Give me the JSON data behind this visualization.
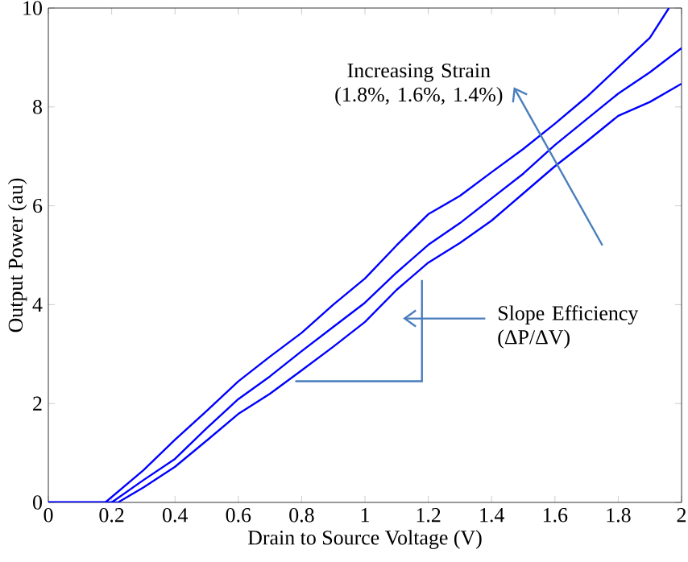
{
  "chart_data": {
    "type": "line",
    "xlabel": "Drain to Source Voltage (V)",
    "ylabel": "Output Power (au)",
    "xlim": [
      0,
      2
    ],
    "ylim": [
      0,
      10
    ],
    "xticks": [
      0,
      0.2,
      0.4,
      0.6,
      0.8,
      1,
      1.2,
      1.4,
      1.6,
      1.8,
      2
    ],
    "yticks": [
      0,
      2,
      4,
      6,
      8,
      10
    ],
    "grid": false,
    "marker": "none",
    "line_style": "solid",
    "series": [
      {
        "color": "#0000ff",
        "x": [
          0,
          0.18,
          0.3,
          0.4,
          0.5,
          0.6,
          0.7,
          0.8,
          0.9,
          1.0,
          1.1,
          1.2,
          1.3,
          1.4,
          1.5,
          1.6,
          1.7,
          1.8,
          1.9,
          1.96
        ],
        "values": [
          0,
          0,
          0.65,
          1.27,
          1.85,
          2.45,
          2.95,
          3.43,
          4.0,
          4.53,
          5.2,
          5.83,
          6.2,
          6.68,
          7.15,
          7.66,
          8.2,
          8.8,
          9.4,
          10
        ]
      },
      {
        "color": "#0000ff",
        "x": [
          0,
          0.2,
          0.3,
          0.4,
          0.5,
          0.6,
          0.7,
          0.8,
          0.9,
          1.0,
          1.1,
          1.2,
          1.3,
          1.4,
          1.5,
          1.6,
          1.7,
          1.8,
          1.9,
          2.0
        ],
        "values": [
          0,
          0,
          0.45,
          0.88,
          1.5,
          2.09,
          2.55,
          3.06,
          3.55,
          4.04,
          4.65,
          5.21,
          5.65,
          6.15,
          6.65,
          7.23,
          7.75,
          8.27,
          8.7,
          9.19
        ]
      },
      {
        "color": "#0000ff",
        "x": [
          0,
          0.22,
          0.3,
          0.4,
          0.5,
          0.6,
          0.7,
          0.8,
          0.9,
          1.0,
          1.1,
          1.2,
          1.3,
          1.4,
          1.5,
          1.6,
          1.7,
          1.8,
          1.9,
          2.0
        ],
        "values": [
          0,
          0,
          0.3,
          0.72,
          1.25,
          1.79,
          2.2,
          2.67,
          3.15,
          3.65,
          4.3,
          4.85,
          5.25,
          5.7,
          6.25,
          6.8,
          7.3,
          7.82,
          8.1,
          8.47
        ]
      }
    ],
    "annotations": [
      "Increasing Strain (1.8%, 1.6%, 1.4%)",
      "Slope Efficiency (ΔP/ΔV)"
    ]
  }
}
